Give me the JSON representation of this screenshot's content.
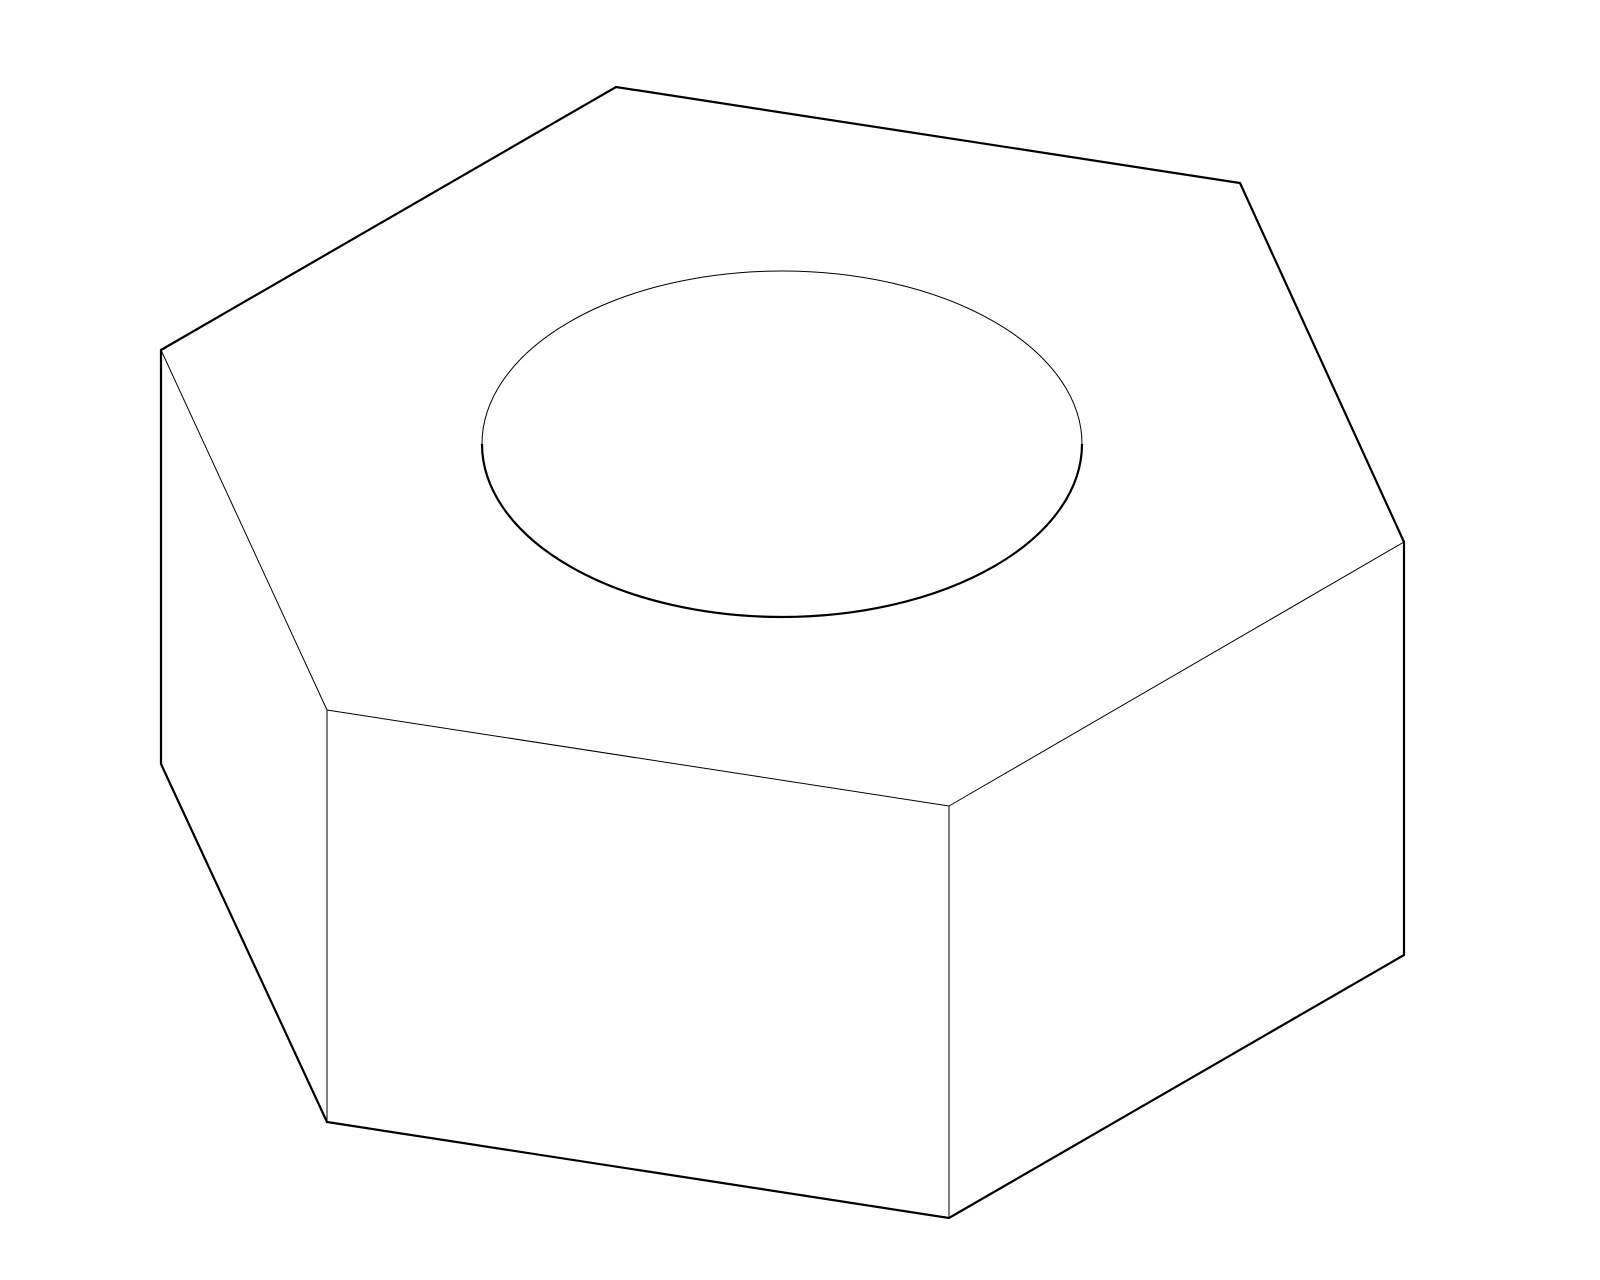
{
  "drawing": {
    "subject": "hex-nut",
    "projection": "isometric",
    "style": "black-on-white line drawing",
    "line_color": "#000000",
    "background_color": "#ffffff",
    "visible_text": []
  }
}
